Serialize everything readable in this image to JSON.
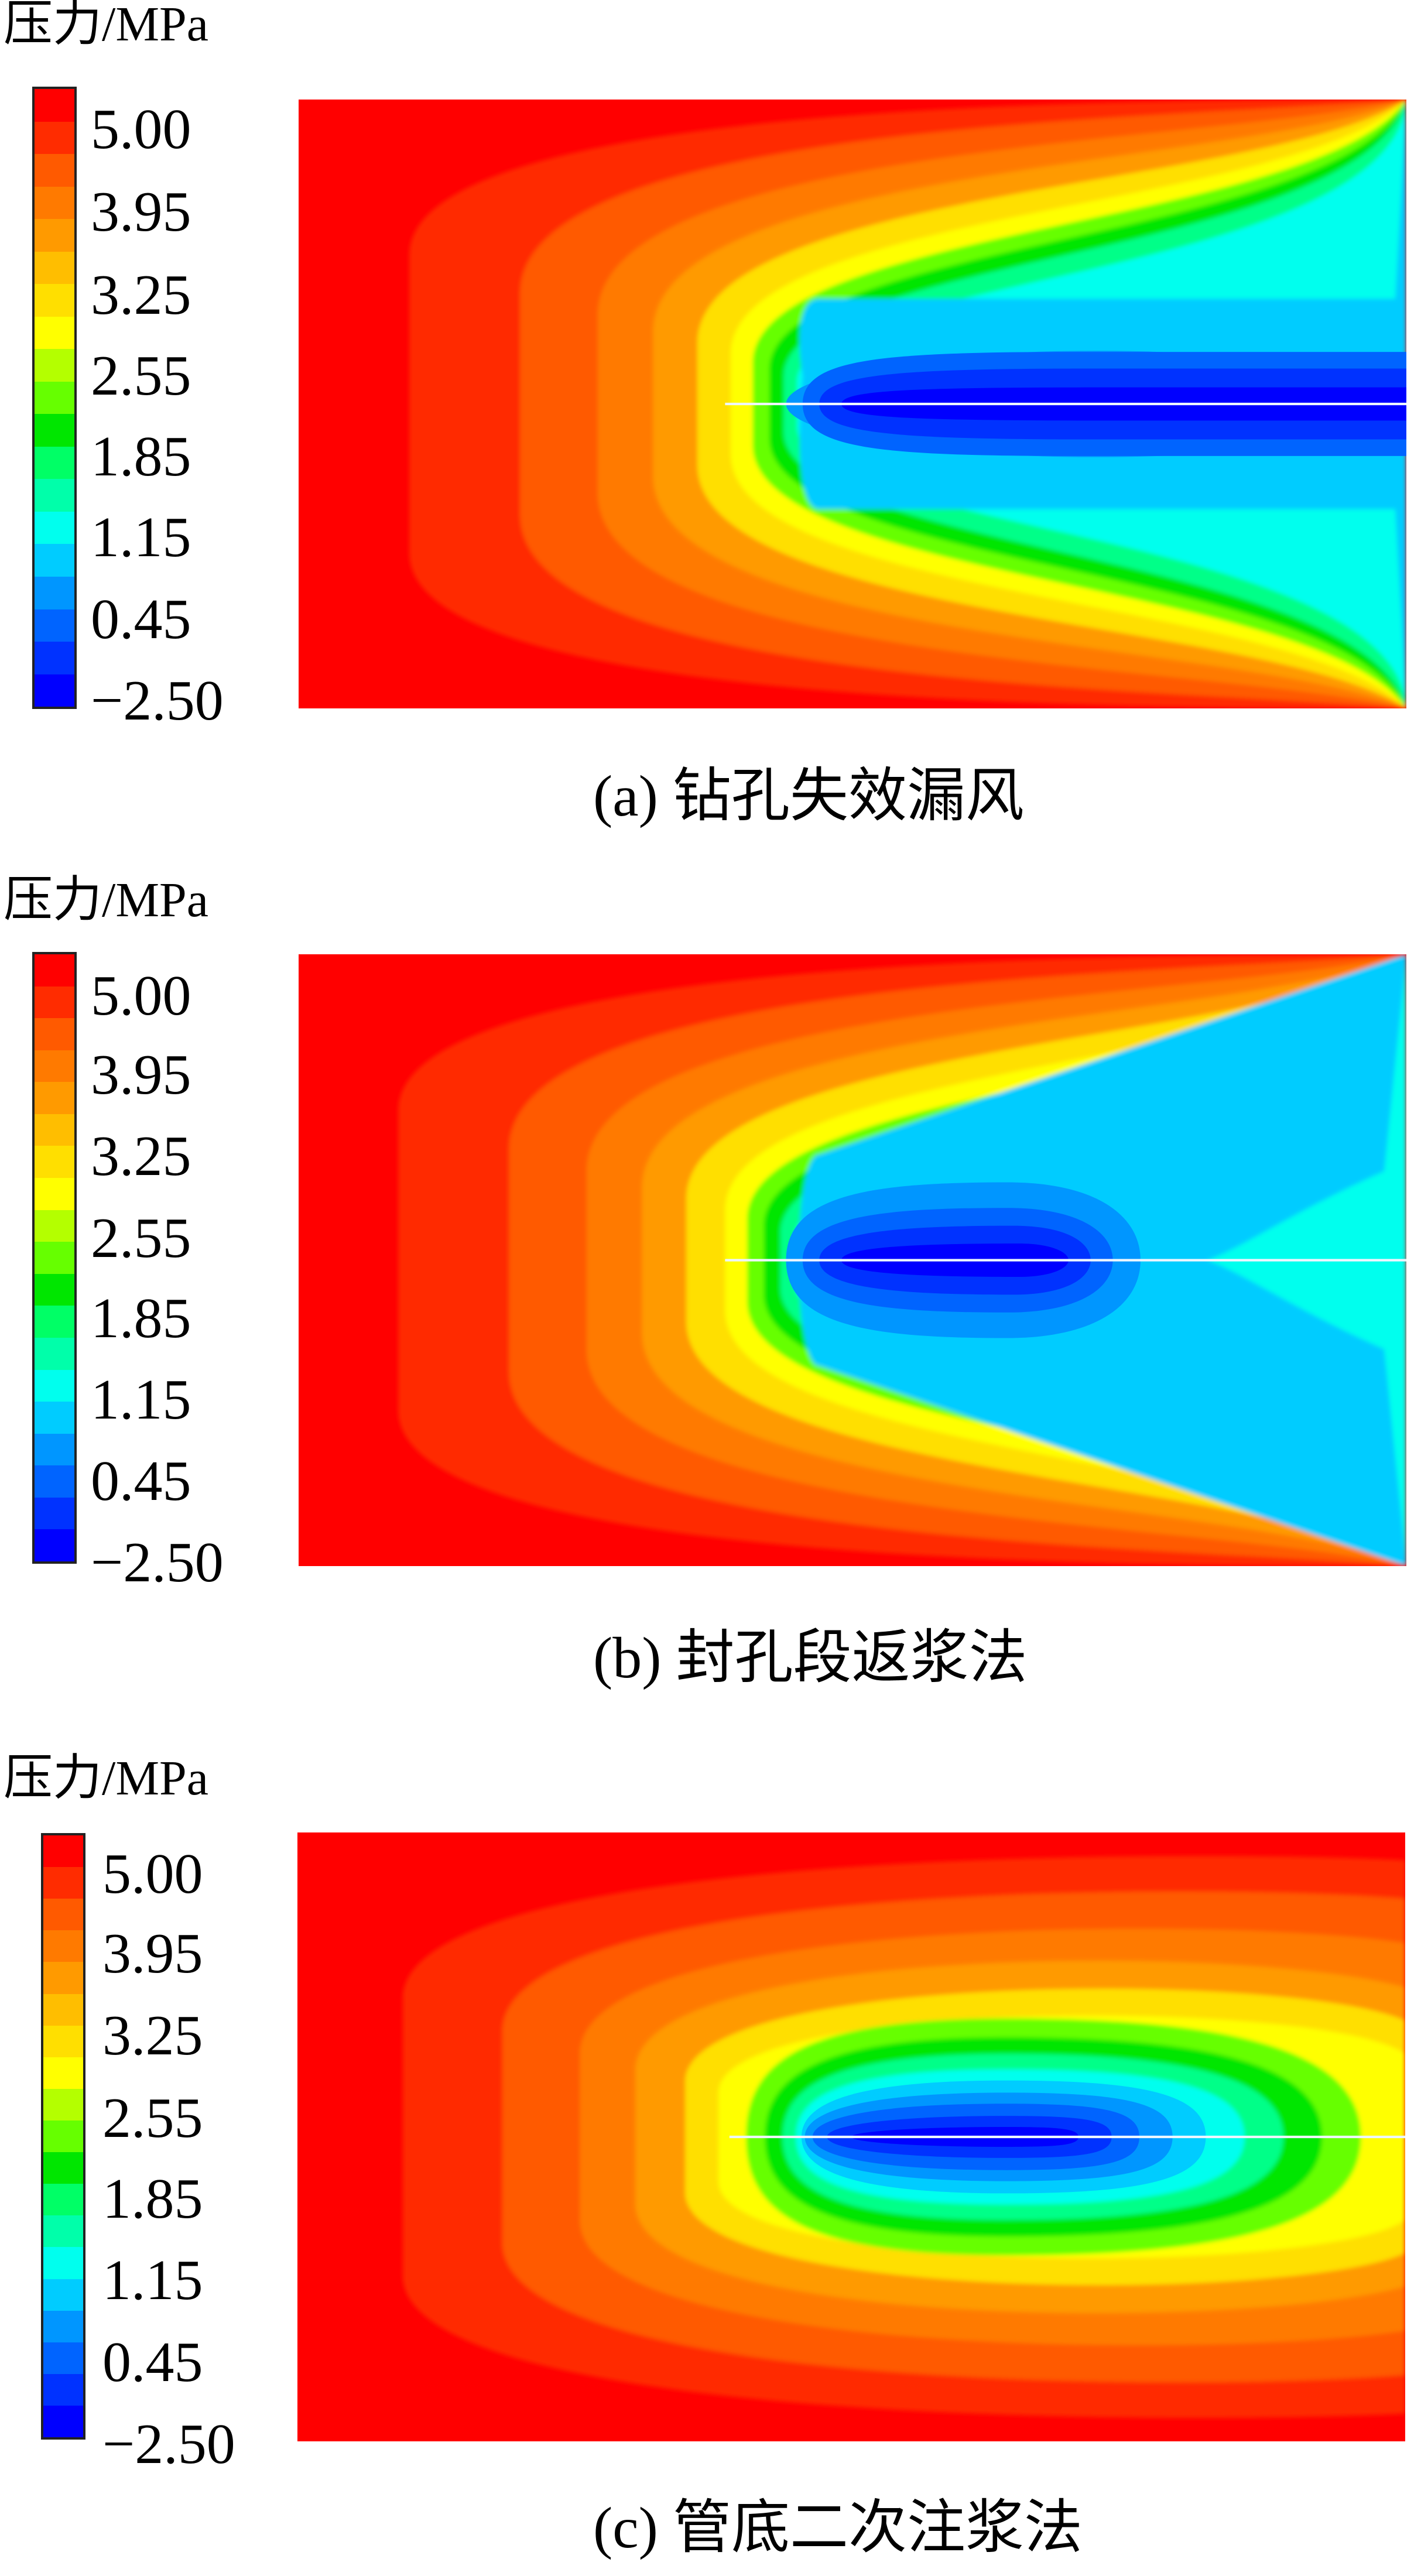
{
  "colorbar": {
    "colors": [
      "#ff0000",
      "#ff2c00",
      "#ff5a00",
      "#ff7a00",
      "#ff9a00",
      "#ffbe00",
      "#ffdf00",
      "#ffff00",
      "#b4ff00",
      "#66ff00",
      "#00e600",
      "#00ff66",
      "#00ffaa",
      "#00ffee",
      "#00ccff",
      "#0096ff",
      "#0064ff",
      "#0032ff",
      "#0000ff"
    ]
  },
  "panels": [
    {
      "id": "a",
      "unit_label": "压力/MPa",
      "ticks": [
        "5.00",
        "3.95",
        "3.25",
        "2.55",
        "1.85",
        "1.15",
        "0.45",
        "−2.50"
      ],
      "caption": "(a) 钻孔失效漏风",
      "inner_shape": "open-channel"
    },
    {
      "id": "b",
      "unit_label": "压力/MPa",
      "ticks": [
        "5.00",
        "3.95",
        "3.25",
        "2.55",
        "1.85",
        "1.15",
        "0.45",
        "−2.50"
      ],
      "caption": "(b) 封孔段返浆法",
      "inner_shape": "pinched-channel"
    },
    {
      "id": "c",
      "unit_label": "压力/MPa",
      "ticks": [
        "5.00",
        "3.95",
        "3.25",
        "2.55",
        "1.85",
        "1.15",
        "0.45",
        "−2.50"
      ],
      "caption": "(c) 管底二次注浆法",
      "inner_shape": "closed-ellipse"
    }
  ]
}
